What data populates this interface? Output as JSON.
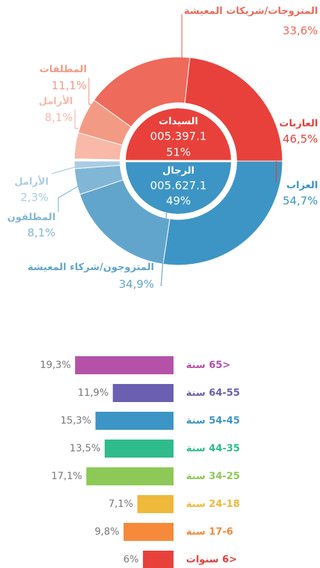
{
  "chart_data": [
    {
      "type": "donut",
      "halves": [
        {
          "name": "السيدات",
          "total": "005.397.1",
          "share": 51,
          "share_label": "51%",
          "color": "#e8413c",
          "categories": [
            "العازبات",
            "المتزوجات/شريكات المعيشة",
            "المطلقات",
            "الأرامل"
          ],
          "values": [
            46.5,
            33.6,
            11.1,
            8.1
          ],
          "value_labels": [
            "46,5%",
            "33,6%",
            "11,1%",
            "8,1%"
          ],
          "colors": [
            "#e8413c",
            "#ee6a5a",
            "#f39a85",
            "#f8b9a9"
          ]
        },
        {
          "name": "الرجال",
          "total": "005.627.1",
          "share": 49,
          "share_label": "49%",
          "color": "#3d95c5",
          "categories": [
            "العزاب",
            "المتزوجون/شركاء المعيشة",
            "المطلقون",
            "الأرامل"
          ],
          "values": [
            54.7,
            34.9,
            8.1,
            2.3
          ],
          "value_labels": [
            "54,7%",
            "34,9%",
            "8,1%",
            "2,3%"
          ],
          "colors": [
            "#3d95c5",
            "#62a5cc",
            "#82b6d6",
            "#a9cde3"
          ]
        }
      ]
    },
    {
      "type": "bar",
      "categories": [
        "<65 سنة",
        "64-55 سنة",
        "54-45 سنة",
        "44-35 سنة",
        "34-25 سنة",
        "24-18 سنة",
        "17-6 سنة",
        "<6 سنوات"
      ],
      "values": [
        19.3,
        11.9,
        15.3,
        13.5,
        17.1,
        7.1,
        9.8,
        6
      ],
      "value_labels": [
        "19,3%",
        "11,9%",
        "15,3%",
        "13,5%",
        "17,1%",
        "7,1%",
        "9,8%",
        "6%"
      ],
      "colors": [
        "#b552a8",
        "#6a5fb0",
        "#3d95c5",
        "#2fbb8b",
        "#8ec957",
        "#efb93c",
        "#f58a3b",
        "#e8413c"
      ]
    }
  ]
}
